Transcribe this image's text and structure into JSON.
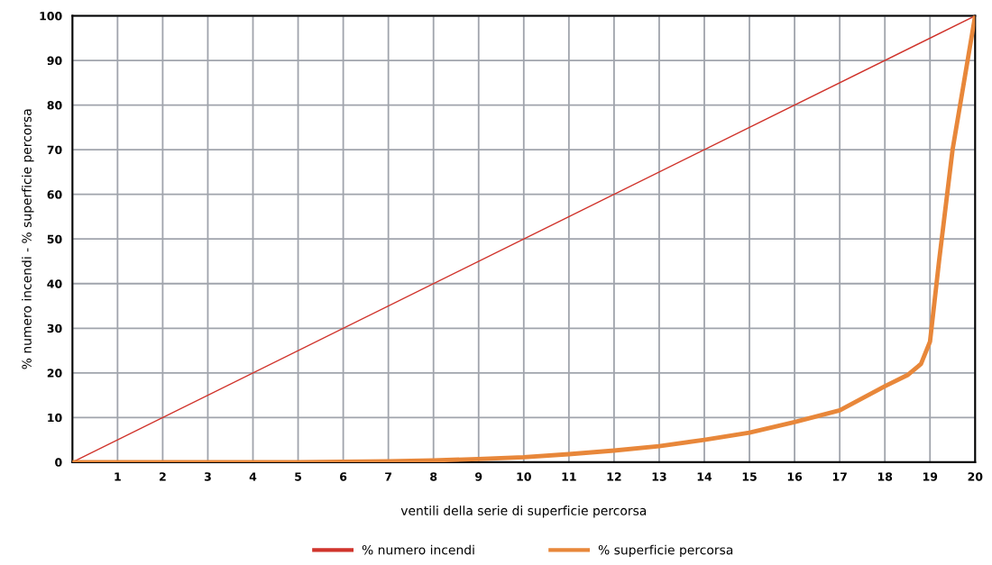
{
  "chart_data": {
    "type": "line",
    "xlabel": "ventili della serie di superficie percorsa",
    "ylabel": "% numero incendi - % superficie percorsa",
    "xlim": [
      0,
      20
    ],
    "ylim": [
      0,
      100
    ],
    "xticks": [
      {
        "value": 0,
        "label": null
      },
      1,
      2,
      3,
      4,
      5,
      6,
      7,
      8,
      9,
      10,
      11,
      12,
      13,
      14,
      15,
      16,
      17,
      18,
      19,
      20
    ],
    "yticks": [
      0,
      10,
      20,
      30,
      40,
      50,
      60,
      70,
      80,
      90,
      100
    ],
    "grid": true,
    "legend": "bottom",
    "marker": "none",
    "line_style": "solid",
    "series": [
      {
        "name": "% numero incendi",
        "color": "#d0342c",
        "x": [
          0,
          20
        ],
        "values": [
          0,
          100
        ]
      },
      {
        "name": "% superficie percorsa",
        "color": "#e8873a",
        "x": [
          0,
          1,
          2,
          3,
          4,
          5,
          6,
          7,
          8,
          9,
          10,
          11,
          12,
          13,
          14,
          15,
          16,
          17,
          18,
          18.5,
          18.8,
          19,
          19.2,
          19.5,
          20
        ],
        "values": [
          0,
          0,
          0,
          0,
          0,
          0,
          0.1,
          0.2,
          0.4,
          0.7,
          1.1,
          1.8,
          2.6,
          3.6,
          5,
          6.6,
          9,
          11.6,
          17,
          19.5,
          22,
          27,
          45,
          70,
          100
        ]
      }
    ]
  }
}
